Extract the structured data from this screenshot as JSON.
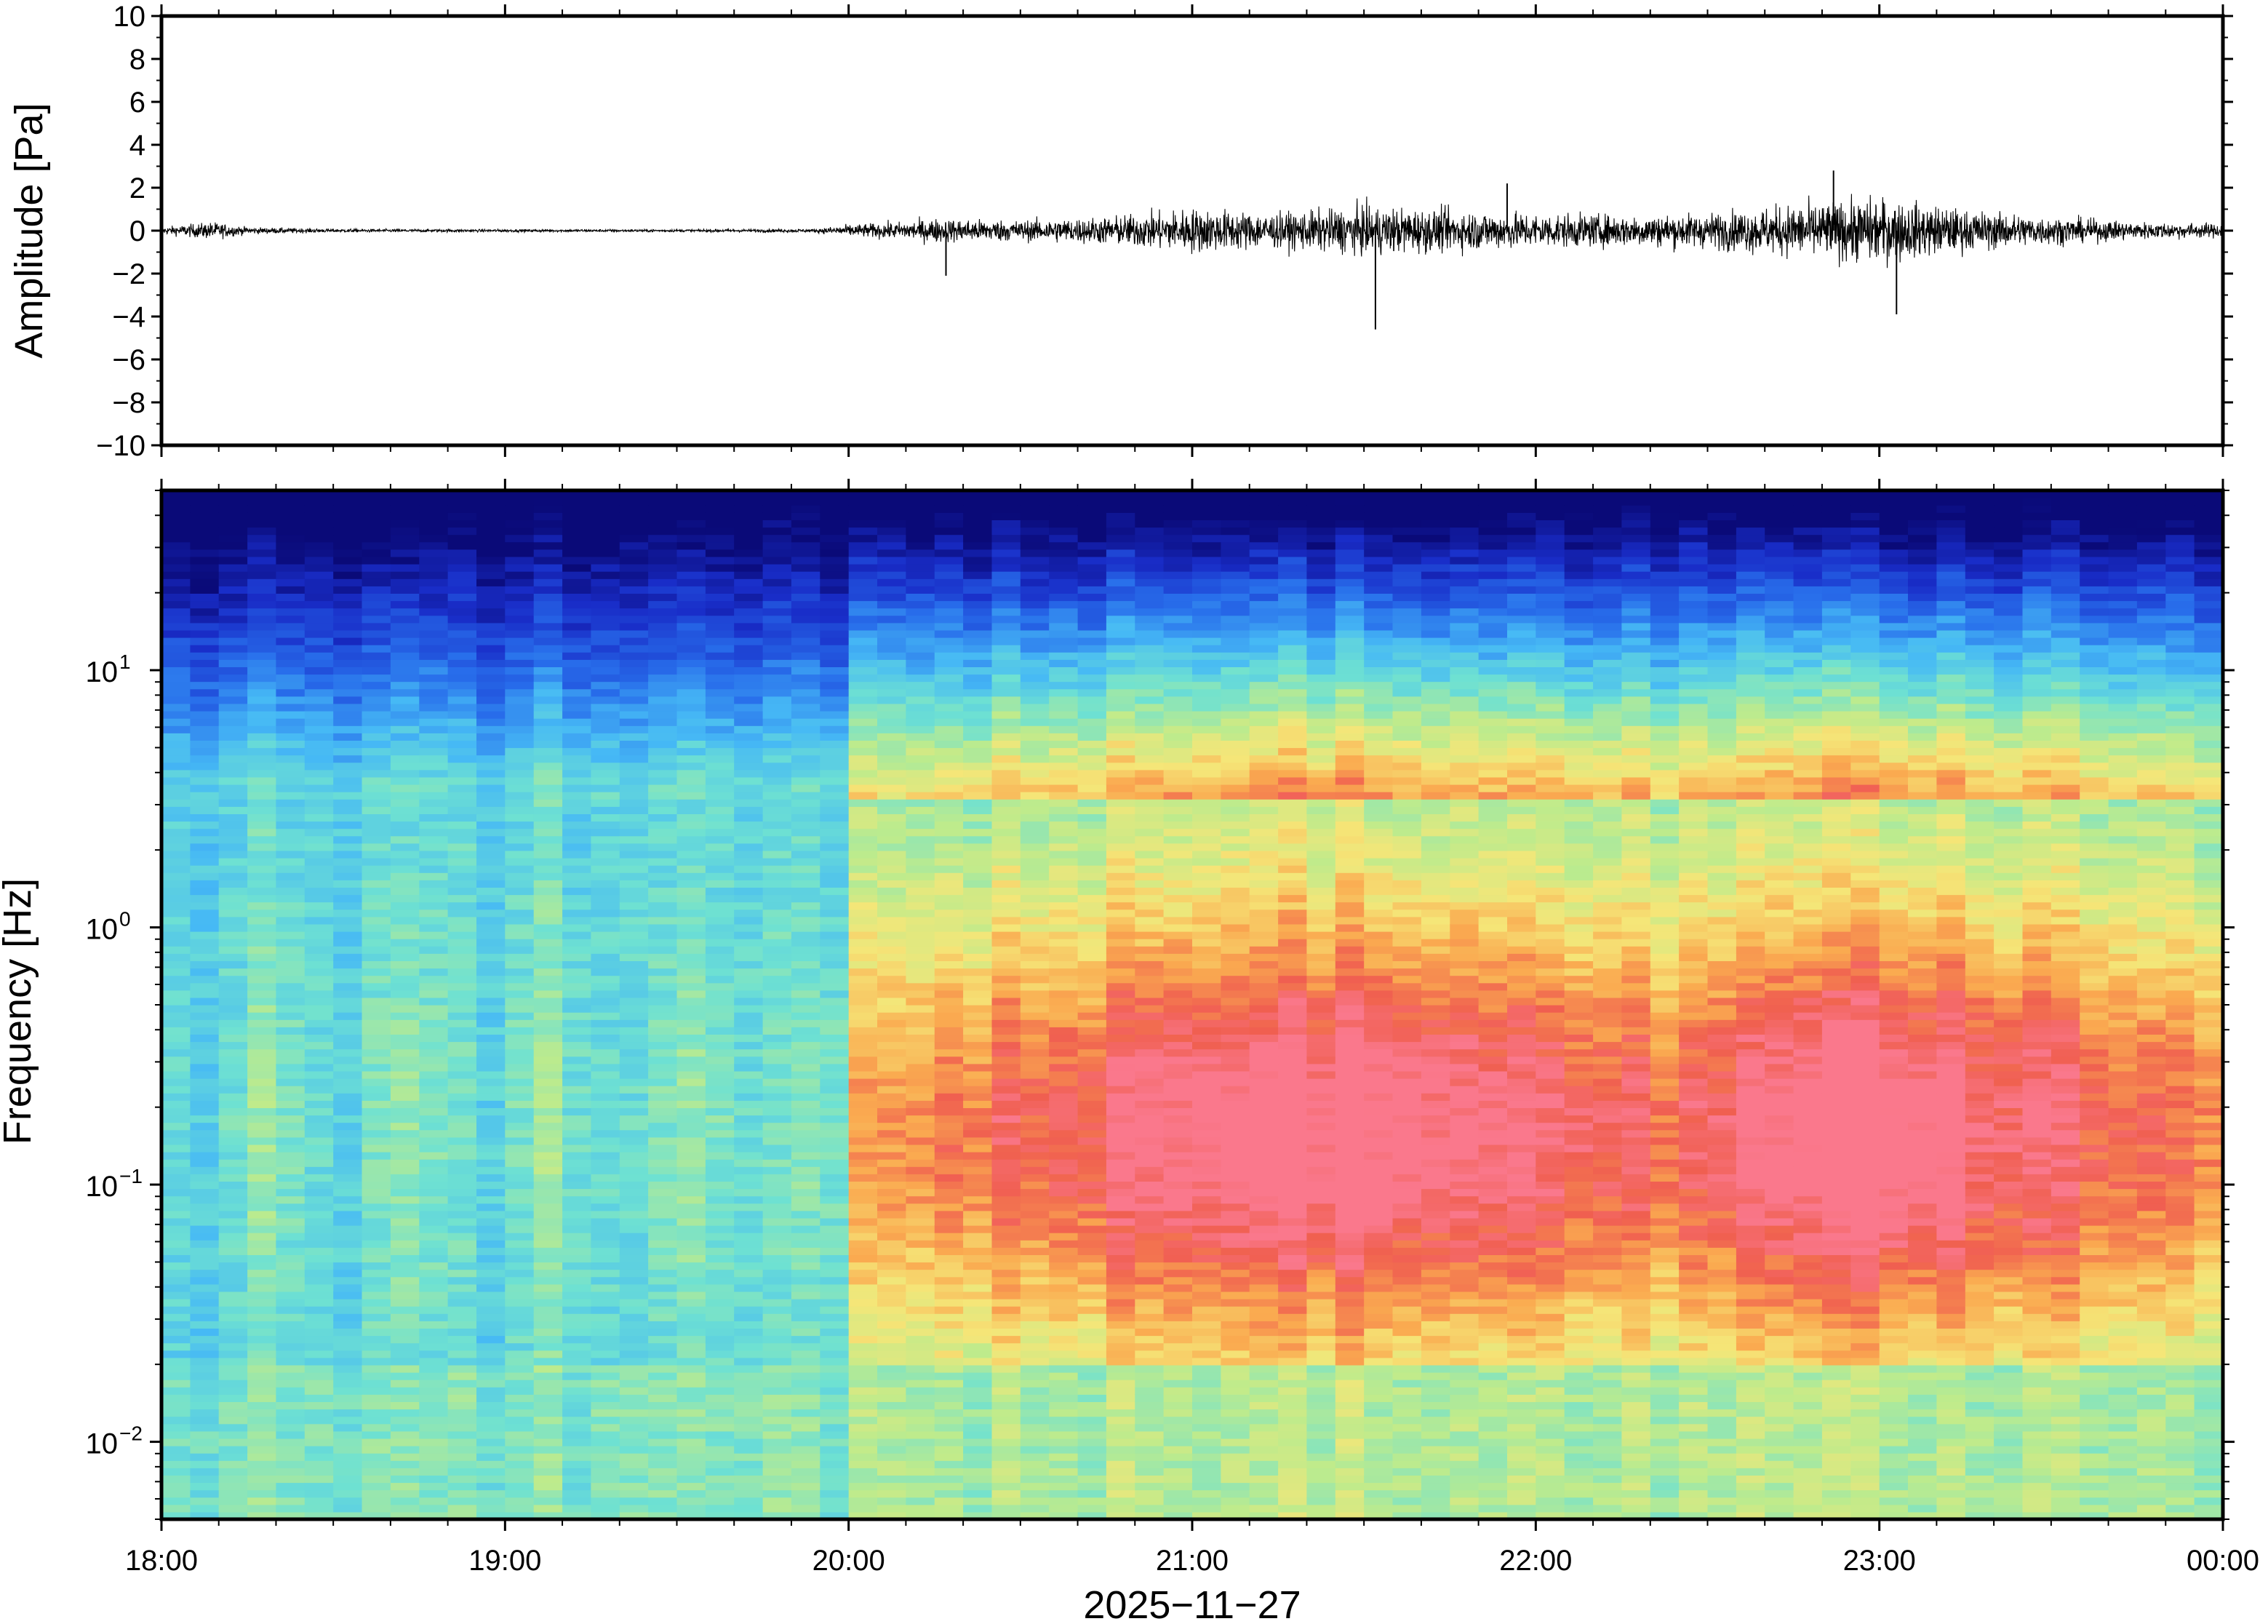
{
  "chart_data": [
    {
      "type": "line",
      "panel": "waveform",
      "ylabel": "Amplitude [Pa]",
      "ylim": [
        -10,
        10
      ],
      "yticks": [
        10,
        8,
        6,
        4,
        2,
        0,
        -2,
        -4,
        -6,
        -8,
        -10
      ],
      "ytick_labels": [
        "10",
        "8",
        "6",
        "4",
        "2",
        "0",
        "−2",
        "−4",
        "−6",
        "−8",
        "−10"
      ],
      "envelope": {
        "time_hours": [
          18.0,
          18.15,
          18.25,
          18.5,
          19.0,
          19.5,
          19.9,
          20.0,
          20.15,
          20.25,
          20.5,
          20.75,
          21.0,
          21.25,
          21.5,
          21.75,
          22.0,
          22.25,
          22.5,
          22.75,
          23.0,
          23.25,
          23.5,
          23.75,
          24.0
        ],
        "amplitude_pa": [
          0.2,
          0.5,
          0.2,
          0.1,
          0.08,
          0.08,
          0.1,
          0.35,
          0.5,
          0.7,
          0.6,
          0.8,
          1.3,
          1.0,
          1.4,
          1.2,
          1.0,
          0.9,
          1.0,
          1.5,
          1.9,
          1.2,
          0.8,
          0.5,
          0.4
        ]
      },
      "peaks": [
        {
          "time": "20:17",
          "value_pa": -2.1
        },
        {
          "time": "21:32",
          "value_pa": -4.6
        },
        {
          "time": "21:55",
          "value_pa": 2.2
        },
        {
          "time": "22:52",
          "value_pa": 2.8
        },
        {
          "time": "23:03",
          "value_pa": -3.9
        }
      ]
    },
    {
      "type": "heatmap",
      "panel": "spectrogram",
      "ylabel": "Frequency [Hz]",
      "yscale": "log",
      "ylim_hz": [
        0.005,
        50
      ],
      "yticks": [
        {
          "base": "10",
          "exp": "1"
        },
        {
          "base": "10",
          "exp": "0"
        },
        {
          "base": "10",
          "exp": "−1"
        },
        {
          "base": "10",
          "exp": "−2"
        }
      ],
      "colormap": "jet",
      "xlabel": "2025−11−27",
      "xticks": [
        "18:00",
        "19:00",
        "20:00",
        "21:00",
        "22:00",
        "23:00",
        "00:00"
      ],
      "xlim_hours": [
        18,
        24
      ]
    }
  ]
}
